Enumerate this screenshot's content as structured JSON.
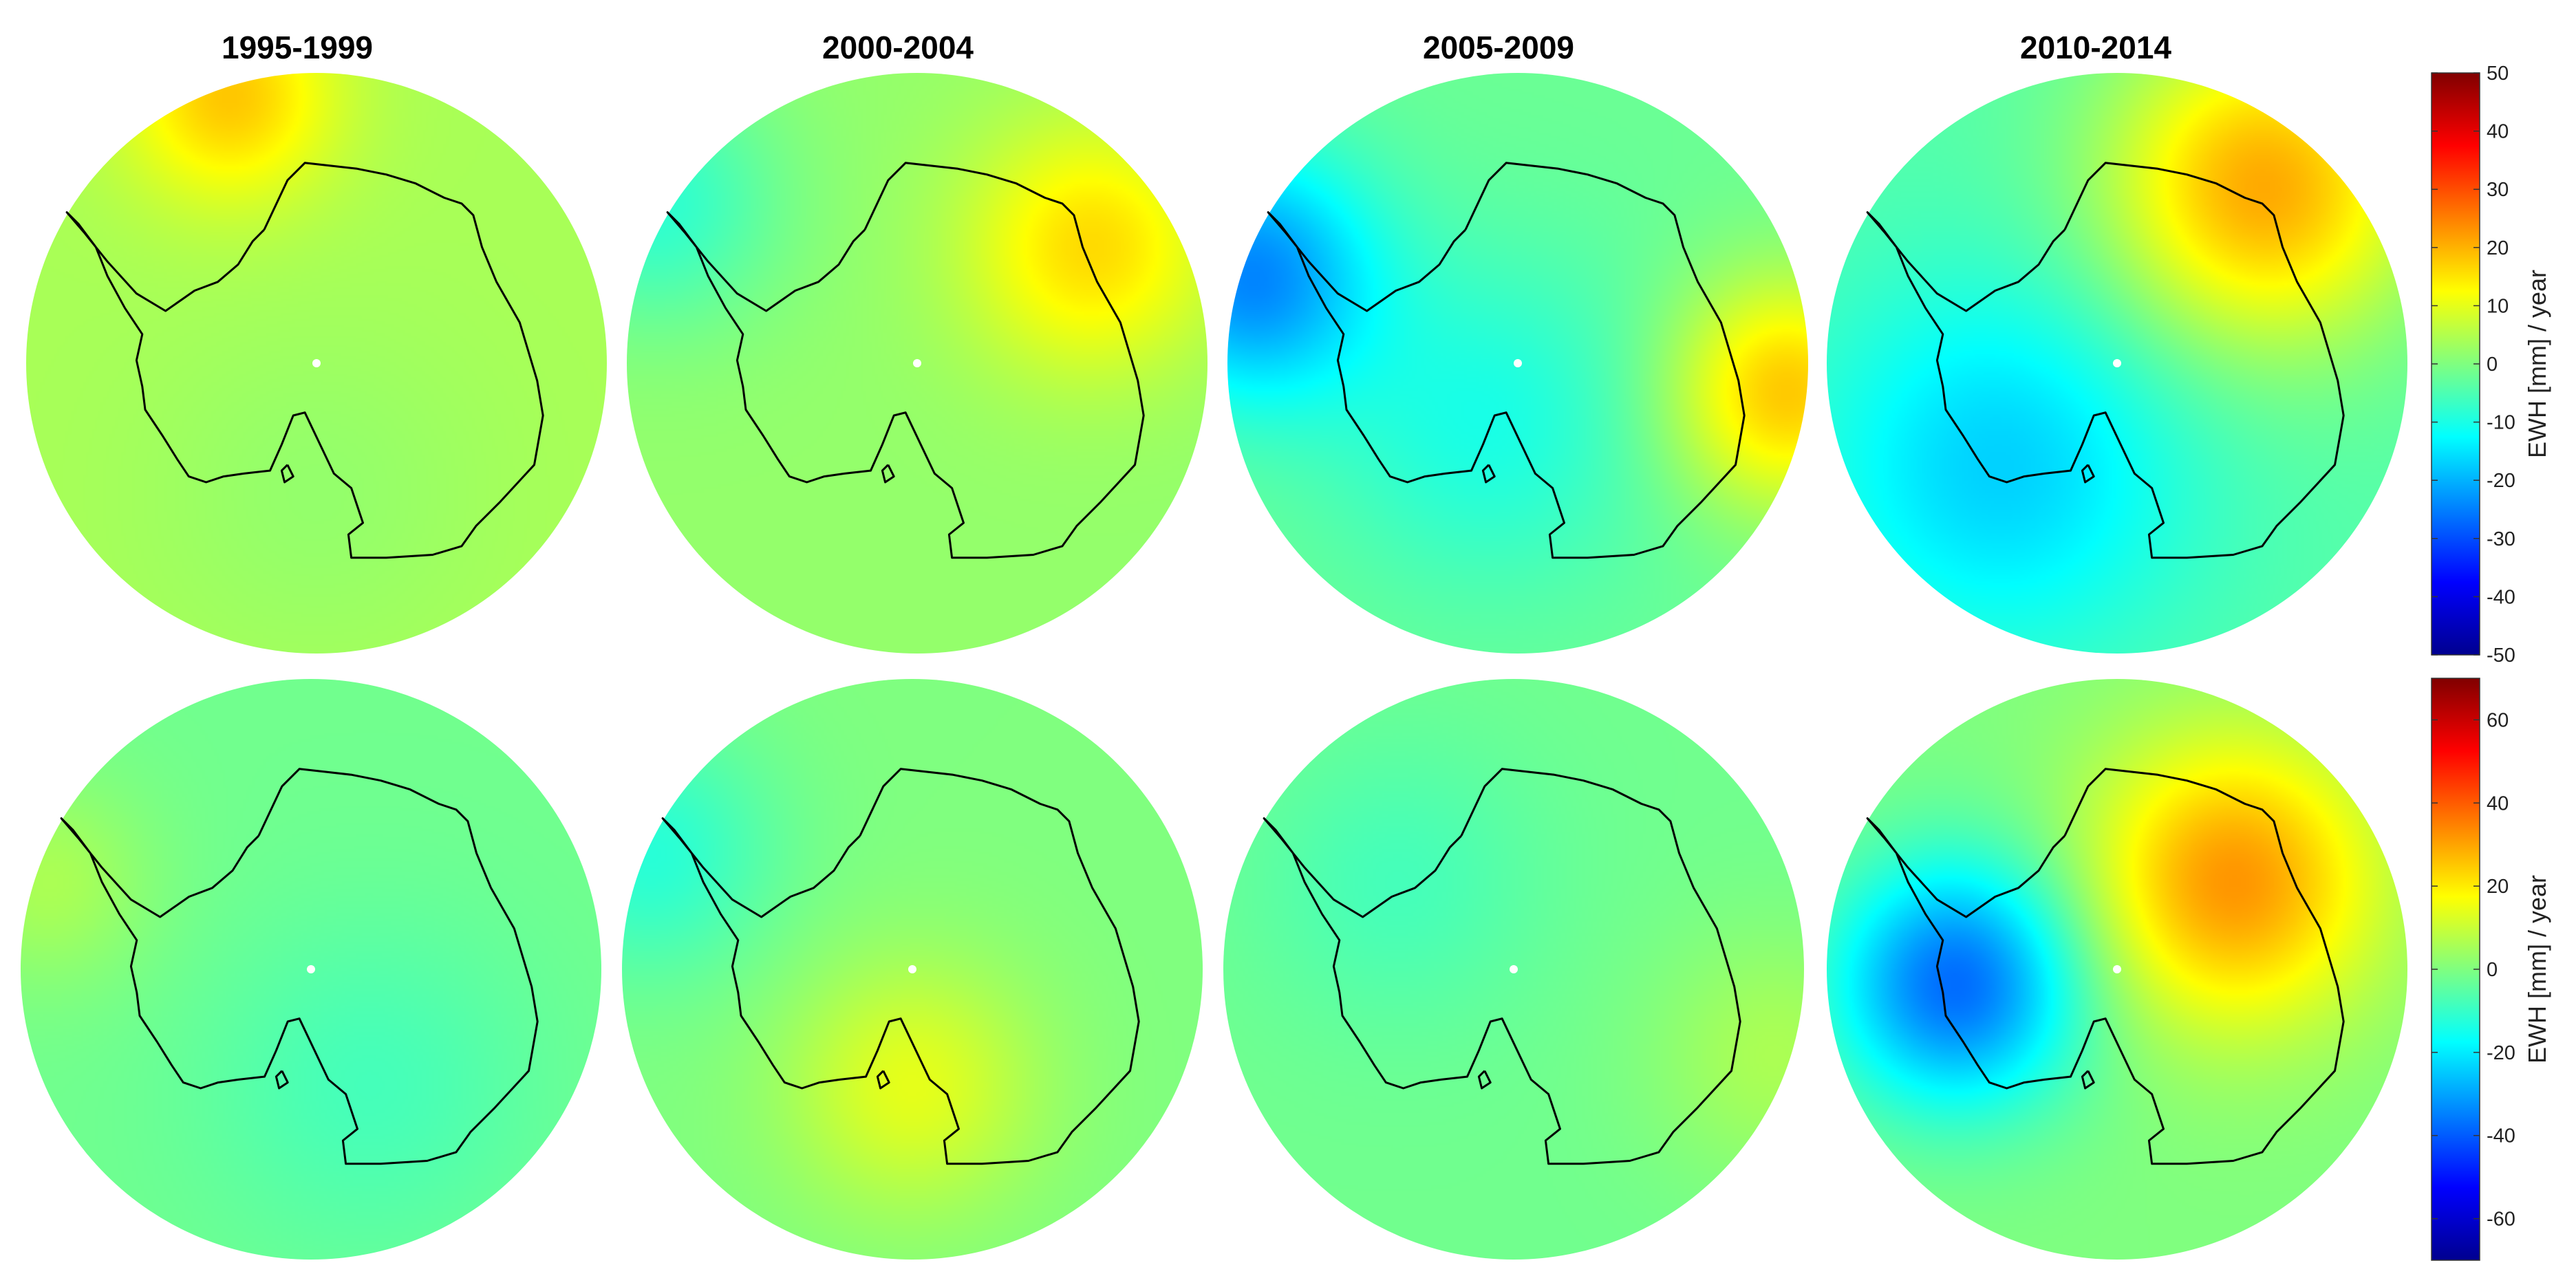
{
  "figure": {
    "period_titles": [
      "1995-1999",
      "2000-2004",
      "2005-2009",
      "2010-2014"
    ],
    "rows": [
      {
        "colorbar": {
          "label": "EWH [mm] / year",
          "min": -50,
          "max": 50,
          "ticks": [
            50,
            40,
            30,
            20,
            10,
            0,
            -10,
            -20,
            -30,
            -40,
            -50
          ]
        },
        "maps": [
          {
            "period": "1995-1999",
            "base_value": 4,
            "blobs": [
              {
                "u": -0.3,
                "v": -0.92,
                "value": 14,
                "spread": 0.25
              },
              {
                "u": 0.0,
                "v": 0.45,
                "value": -2,
                "spread": 0.4
              }
            ]
          },
          {
            "period": "2000-2004",
            "base_value": 2,
            "blobs": [
              {
                "u": -0.9,
                "v": -0.55,
                "value": -10,
                "spread": 0.3
              },
              {
                "u": 0.6,
                "v": -0.4,
                "value": 14,
                "spread": 0.3
              }
            ]
          },
          {
            "period": "2005-2009",
            "base_value": -2,
            "blobs": [
              {
                "u": -0.92,
                "v": -0.3,
                "value": -22,
                "spread": 0.3
              },
              {
                "u": 0.92,
                "v": 0.1,
                "value": 20,
                "spread": 0.28
              },
              {
                "u": -0.1,
                "v": 0.2,
                "value": -8,
                "spread": 0.4
              }
            ]
          },
          {
            "period": "2010-2014",
            "base_value": -4,
            "blobs": [
              {
                "u": 0.5,
                "v": -0.6,
                "value": 25,
                "spread": 0.38
              },
              {
                "u": -0.4,
                "v": 0.35,
                "value": -13,
                "spread": 0.45
              }
            ]
          }
        ]
      },
      {
        "colorbar": {
          "label": "EWH [mm] / year",
          "min": -70,
          "max": 70,
          "ticks": [
            60,
            40,
            20,
            0,
            -20,
            -40,
            -60
          ]
        },
        "maps": [
          {
            "period": "1995-1999",
            "base_value": -2,
            "blobs": [
              {
                "u": -0.9,
                "v": -0.3,
                "value": 8,
                "spread": 0.25
              },
              {
                "u": 0.2,
                "v": 0.4,
                "value": -6,
                "spread": 0.4
              }
            ]
          },
          {
            "period": "2000-2004",
            "base_value": 0,
            "blobs": [
              {
                "u": 0.0,
                "v": 0.4,
                "value": 14,
                "spread": 0.3
              },
              {
                "u": -0.9,
                "v": -0.4,
                "value": -12,
                "spread": 0.3
              }
            ]
          },
          {
            "period": "2005-2009",
            "base_value": -2,
            "blobs": [
              {
                "u": 0.9,
                "v": 0.3,
                "value": 8,
                "spread": 0.3
              },
              {
                "u": -0.4,
                "v": -0.3,
                "value": -6,
                "spread": 0.35
              }
            ]
          },
          {
            "period": "2010-2014",
            "base_value": 0,
            "blobs": [
              {
                "u": 0.4,
                "v": -0.3,
                "value": 32,
                "spread": 0.35
              },
              {
                "u": -0.55,
                "v": 0.05,
                "value": -38,
                "spread": 0.3
              }
            ]
          }
        ]
      }
    ]
  }
}
